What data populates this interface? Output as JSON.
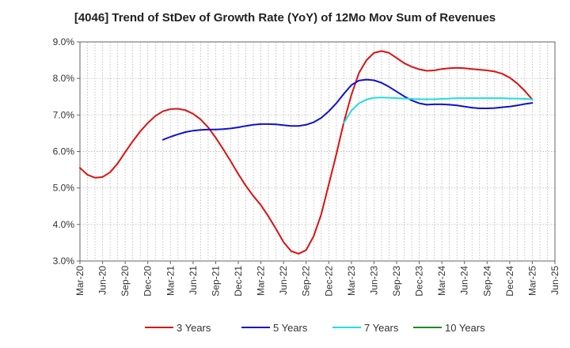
{
  "chart_data": {
    "type": "line",
    "title": "[4046]  Trend of StDev of Growth Rate (YoY) of 12Mo Mov Sum of Revenues",
    "xlabel": "",
    "ylabel": "",
    "ylim": [
      3.0,
      9.0
    ],
    "y_ticks": [
      "3.0%",
      "4.0%",
      "5.0%",
      "6.0%",
      "7.0%",
      "8.0%",
      "9.0%"
    ],
    "y_tick_values": [
      3.0,
      4.0,
      5.0,
      6.0,
      7.0,
      8.0,
      9.0
    ],
    "x_ticks": [
      "Mar-20",
      "Jun-20",
      "Sep-20",
      "Dec-20",
      "Mar-21",
      "Jun-21",
      "Sep-21",
      "Dec-21",
      "Mar-22",
      "Jun-22",
      "Sep-22",
      "Dec-22",
      "Mar-23",
      "Jun-23",
      "Sep-23",
      "Dec-23",
      "Mar-24",
      "Jun-24",
      "Sep-24",
      "Dec-24",
      "Mar-25",
      "Jun-25"
    ],
    "x_range_months": [
      0,
      63
    ],
    "grid": true,
    "legend_position": "bottom",
    "series": [
      {
        "name": "3 Years",
        "color": "#dd1111",
        "x": [
          0,
          1,
          2,
          3,
          4,
          5,
          6,
          7,
          8,
          9,
          10,
          11,
          12,
          13,
          14,
          15,
          16,
          17,
          18,
          19,
          20,
          21,
          22,
          23,
          24,
          25,
          26,
          27,
          28,
          29,
          30,
          31,
          32,
          33,
          34,
          35,
          36,
          37,
          38,
          39,
          40,
          41,
          42,
          43,
          44,
          45,
          46,
          47,
          48,
          49,
          50,
          51,
          52,
          53,
          54,
          55,
          56,
          57,
          58,
          59,
          60
        ],
        "values": [
          5.55,
          5.36,
          5.28,
          5.3,
          5.43,
          5.67,
          5.98,
          6.28,
          6.55,
          6.78,
          6.97,
          7.1,
          7.16,
          7.17,
          7.13,
          7.03,
          6.88,
          6.66,
          6.38,
          6.06,
          5.73,
          5.38,
          5.06,
          4.78,
          4.53,
          4.22,
          3.88,
          3.52,
          3.27,
          3.2,
          3.3,
          3.68,
          4.28,
          5.1,
          5.92,
          6.8,
          7.55,
          8.15,
          8.5,
          8.7,
          8.75,
          8.7,
          8.56,
          8.42,
          8.32,
          8.25,
          8.21,
          8.22,
          8.26,
          8.28,
          8.29,
          8.28,
          8.26,
          8.24,
          8.22,
          8.19,
          8.13,
          8.02,
          7.86,
          7.66,
          7.42
        ]
      },
      {
        "name": "5 Years",
        "color": "#1111cc",
        "x": [
          11,
          12,
          13,
          14,
          15,
          16,
          17,
          18,
          19,
          20,
          21,
          22,
          23,
          24,
          25,
          26,
          27,
          28,
          29,
          30,
          31,
          32,
          33,
          34,
          35,
          36,
          37,
          38,
          39,
          40,
          41,
          42,
          43,
          44,
          45,
          46,
          47,
          48,
          49,
          50,
          51,
          52,
          53,
          54,
          55,
          56,
          57,
          58,
          59,
          60
        ],
        "values": [
          6.32,
          6.4,
          6.47,
          6.53,
          6.57,
          6.59,
          6.6,
          6.6,
          6.61,
          6.63,
          6.66,
          6.7,
          6.73,
          6.75,
          6.75,
          6.74,
          6.72,
          6.7,
          6.7,
          6.73,
          6.8,
          6.92,
          7.1,
          7.32,
          7.58,
          7.82,
          7.94,
          7.97,
          7.95,
          7.88,
          7.77,
          7.64,
          7.51,
          7.4,
          7.32,
          7.28,
          7.29,
          7.29,
          7.28,
          7.26,
          7.23,
          7.2,
          7.18,
          7.18,
          7.19,
          7.21,
          7.23,
          7.26,
          7.3,
          7.33
        ]
      },
      {
        "name": "7 Years",
        "color": "#22dddd",
        "x": [
          35,
          36,
          37,
          38,
          39,
          40,
          41,
          42,
          43,
          44,
          45,
          46,
          47,
          48,
          49,
          50,
          51,
          52,
          53,
          54,
          55,
          56,
          57,
          58,
          59,
          60
        ],
        "values": [
          6.78,
          7.12,
          7.32,
          7.42,
          7.47,
          7.48,
          7.47,
          7.46,
          7.45,
          7.44,
          7.43,
          7.43,
          7.43,
          7.44,
          7.45,
          7.46,
          7.46,
          7.46,
          7.46,
          7.46,
          7.46,
          7.46,
          7.45,
          7.45,
          7.44,
          7.43
        ]
      },
      {
        "name": "10 Years",
        "color": "#228822",
        "x": [],
        "values": []
      }
    ]
  }
}
